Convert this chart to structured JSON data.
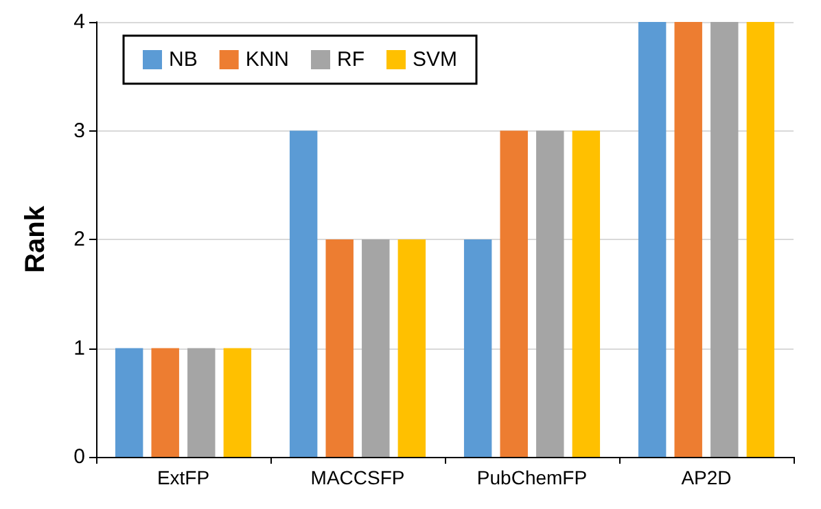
{
  "chart_data": {
    "type": "bar",
    "ylabel": "Rank",
    "categories": [
      "ExtFP",
      "MACCSFP",
      "PubChemFP",
      "AP2D"
    ],
    "series": [
      {
        "name": "NB",
        "color": "#5b9bd5",
        "values": [
          1,
          3,
          2,
          4
        ]
      },
      {
        "name": "KNN",
        "color": "#ed7d31",
        "values": [
          1,
          2,
          3,
          4
        ]
      },
      {
        "name": "RF",
        "color": "#a5a5a5",
        "values": [
          1,
          2,
          3,
          4
        ]
      },
      {
        "name": "SVM",
        "color": "#ffc000",
        "values": [
          1,
          2,
          3,
          4
        ]
      }
    ],
    "ylim": [
      0,
      4
    ],
    "yticks": [
      0,
      1,
      2,
      3,
      4
    ],
    "grid": "y",
    "legend": "top left"
  }
}
